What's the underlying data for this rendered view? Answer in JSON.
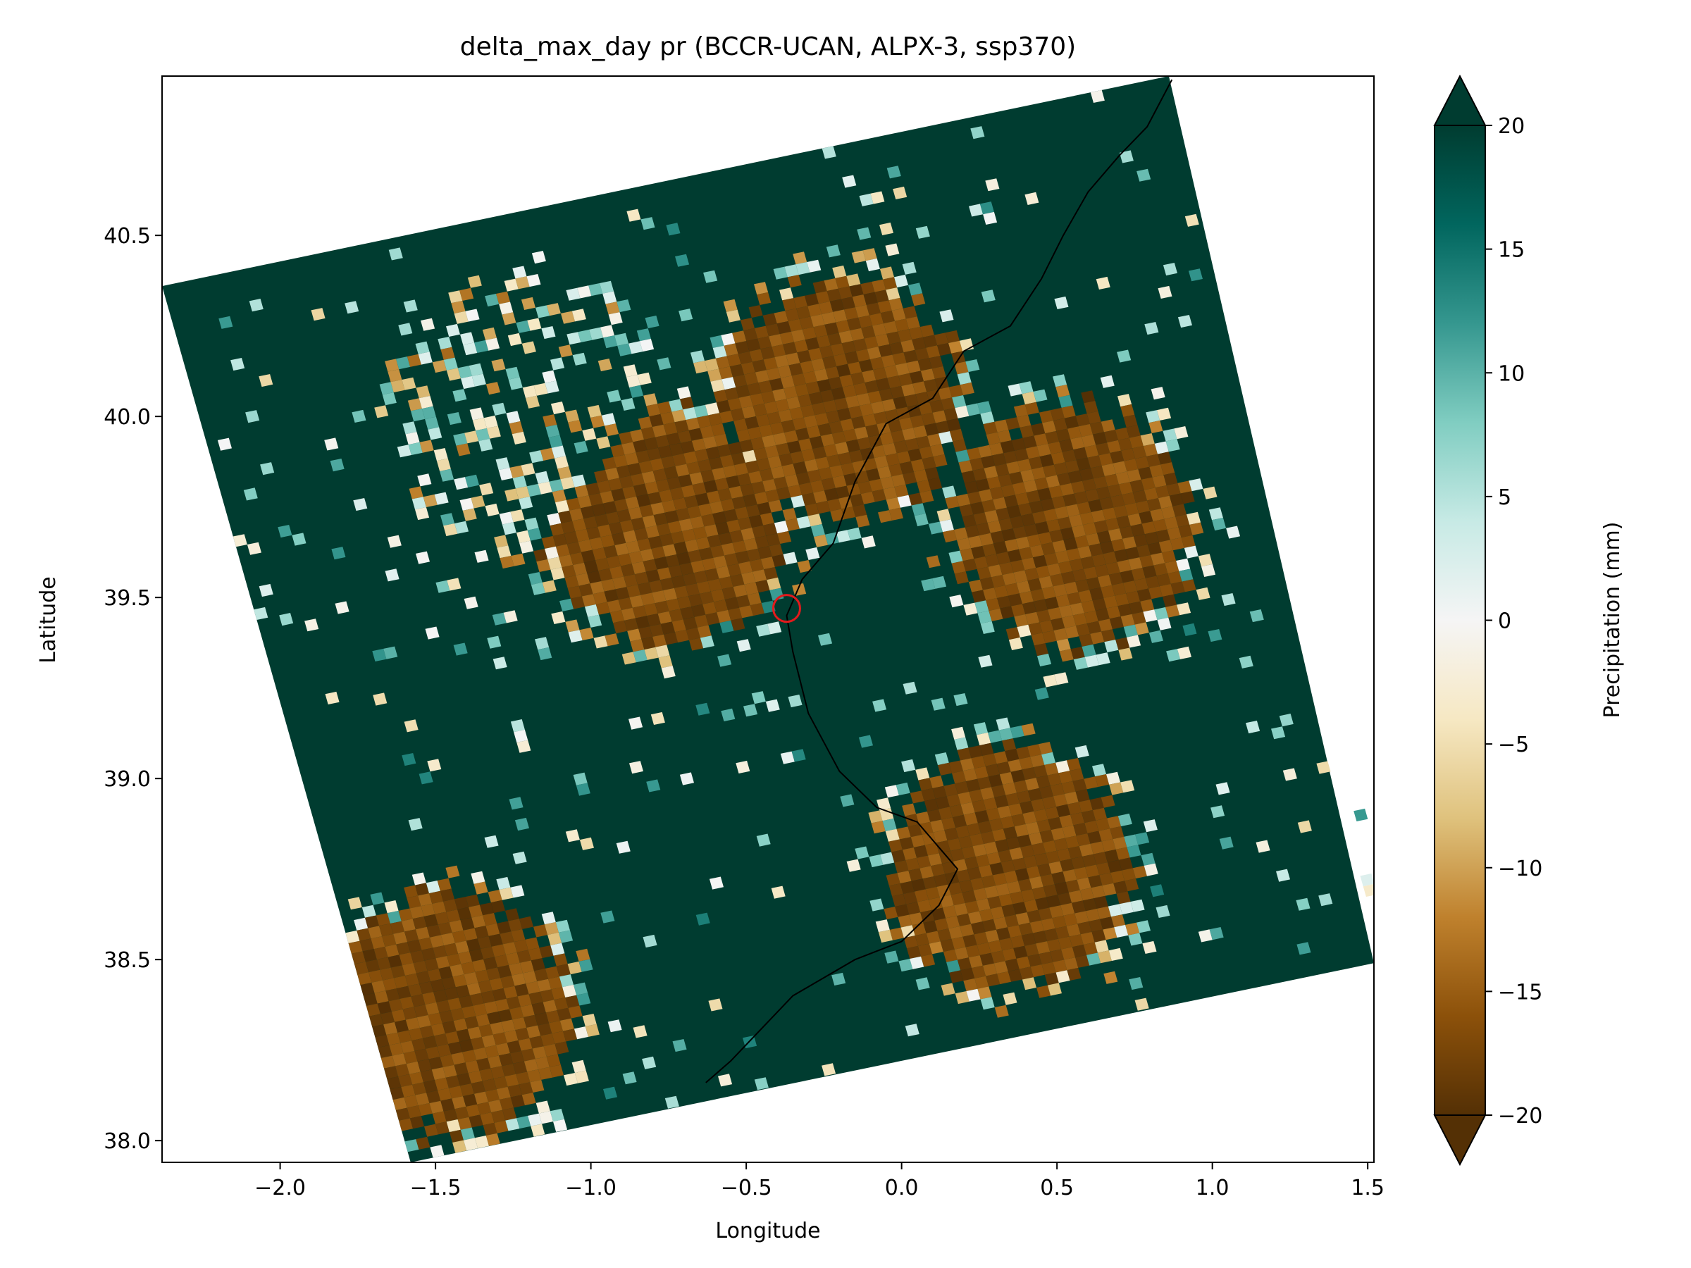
{
  "chart_data": {
    "type": "heatmap",
    "title": "delta_max_day pr (BCCR-UCAN, ALPX-3, ssp370)",
    "xlabel": "Longitude",
    "ylabel": "Latitude",
    "xlim": [
      -2.38,
      1.52
    ],
    "ylim": [
      37.94,
      40.94
    ],
    "x_ticks": [
      -2.0,
      -1.5,
      -1.0,
      -0.5,
      0.0,
      0.5,
      1.0,
      1.5
    ],
    "x_tick_labels": [
      "−2.0",
      "−1.5",
      "−1.0",
      "−0.5",
      "0.0",
      "0.5",
      "1.0",
      "1.5"
    ],
    "y_ticks": [
      38.0,
      38.5,
      39.0,
      39.5,
      40.0,
      40.5
    ],
    "y_tick_labels": [
      "38.0",
      "38.5",
      "39.0",
      "39.5",
      "40.0",
      "40.5"
    ],
    "grid": false,
    "domain_corners_lonlat": [
      [
        -2.38,
        40.36
      ],
      [
        0.86,
        40.94
      ],
      [
        1.52,
        38.49
      ],
      [
        -1.58,
        37.94
      ]
    ],
    "colormap": "BrBG",
    "colorbar": {
      "label": "Precipitation (mm)",
      "range": [
        -20,
        20
      ],
      "extend": "both",
      "ticks": [
        20,
        15,
        10,
        5,
        0,
        -5,
        -10,
        -15,
        -20
      ],
      "tick_labels": [
        "20",
        "15",
        "10",
        "5",
        "0",
        "−5",
        "−10",
        "−15",
        "−20"
      ]
    },
    "marker": {
      "lon": -0.37,
      "lat": 39.47,
      "shape": "circle",
      "color": "#e41a1c"
    },
    "coastline": [
      [
        0.87,
        40.93
      ],
      [
        0.79,
        40.8
      ],
      [
        0.7,
        40.72
      ],
      [
        0.6,
        40.62
      ],
      [
        0.52,
        40.5
      ],
      [
        0.45,
        40.38
      ],
      [
        0.35,
        40.25
      ],
      [
        0.2,
        40.18
      ],
      [
        0.1,
        40.05
      ],
      [
        -0.05,
        39.98
      ],
      [
        -0.15,
        39.82
      ],
      [
        -0.22,
        39.65
      ],
      [
        -0.32,
        39.55
      ],
      [
        -0.37,
        39.45
      ],
      [
        -0.35,
        39.35
      ],
      [
        -0.3,
        39.18
      ],
      [
        -0.2,
        39.02
      ],
      [
        -0.08,
        38.92
      ],
      [
        0.05,
        38.88
      ],
      [
        0.18,
        38.75
      ],
      [
        0.12,
        38.65
      ],
      [
        0.0,
        38.55
      ],
      [
        -0.15,
        38.5
      ],
      [
        -0.35,
        38.4
      ],
      [
        -0.55,
        38.22
      ],
      [
        -0.63,
        38.16
      ]
    ],
    "sign_regions": [
      {
        "sign": "negative",
        "center": [
          -1.45,
          38.35
        ]
      },
      {
        "sign": "negative",
        "center": [
          0.35,
          38.75
        ]
      },
      {
        "sign": "negative",
        "center": [
          0.55,
          39.7
        ]
      },
      {
        "sign": "negative",
        "center": [
          -0.2,
          40.05
        ]
      },
      {
        "sign": "negative",
        "center": [
          -0.75,
          39.7
        ]
      },
      {
        "sign": "positive",
        "center": [
          -1.2,
          40.0
        ]
      }
    ]
  }
}
